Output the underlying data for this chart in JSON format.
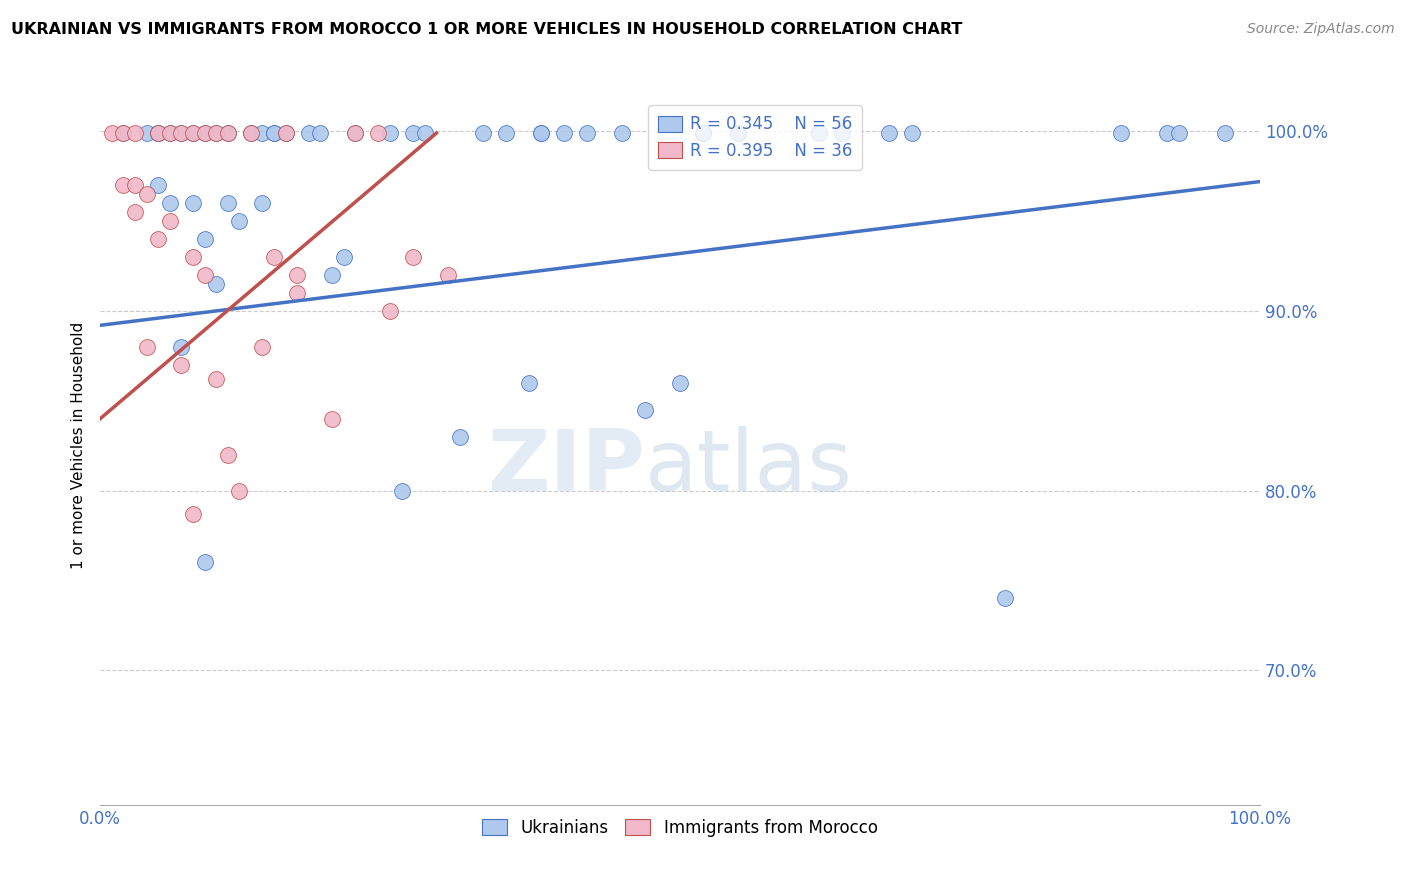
{
  "title": "UKRAINIAN VS IMMIGRANTS FROM MOROCCO 1 OR MORE VEHICLES IN HOUSEHOLD CORRELATION CHART",
  "source": "Source: ZipAtlas.com",
  "ylabel": "1 or more Vehicles in Household",
  "xlim": [
    0.0,
    1.0
  ],
  "ylim": [
    0.625,
    1.025
  ],
  "yticks": [
    0.7,
    0.8,
    0.9,
    1.0
  ],
  "ytick_labels": [
    "70.0%",
    "80.0%",
    "90.0%",
    "100.0%"
  ],
  "xtick_labels": [
    "0.0%",
    "100.0%"
  ],
  "legend_r_blue": "R = 0.345",
  "legend_n_blue": "N = 56",
  "legend_r_pink": "R = 0.395",
  "legend_n_pink": "N = 36",
  "blue_color": "#aec9ed",
  "pink_color": "#f0b8c8",
  "line_blue_color": "#4472c4",
  "line_pink_color": "#c0504d",
  "watermark_zip": "ZIP",
  "watermark_atlas": "atlas",
  "blue_points_x": [
    0.02,
    0.04,
    0.05,
    0.05,
    0.06,
    0.06,
    0.07,
    0.07,
    0.08,
    0.08,
    0.09,
    0.09,
    0.1,
    0.1,
    0.11,
    0.11,
    0.12,
    0.13,
    0.14,
    0.14,
    0.15,
    0.15,
    0.16,
    0.18,
    0.19,
    0.2,
    0.21,
    0.22,
    0.25,
    0.26,
    0.27,
    0.28,
    0.31,
    0.33,
    0.35,
    0.37,
    0.38,
    0.38,
    0.4,
    0.42,
    0.45,
    0.47,
    0.5,
    0.52,
    0.55,
    0.62,
    0.64,
    0.68,
    0.7,
    0.78,
    0.88,
    0.92,
    0.93,
    0.97,
    0.05,
    0.09
  ],
  "blue_points_y": [
    0.999,
    0.999,
    0.999,
    0.97,
    0.999,
    0.96,
    0.999,
    0.88,
    0.999,
    0.96,
    0.94,
    0.999,
    0.999,
    0.915,
    0.96,
    0.999,
    0.95,
    0.999,
    0.96,
    0.999,
    0.999,
    0.999,
    0.999,
    0.999,
    0.999,
    0.92,
    0.93,
    0.999,
    0.999,
    0.8,
    0.999,
    0.999,
    0.83,
    0.999,
    0.999,
    0.86,
    0.999,
    0.999,
    0.999,
    0.999,
    0.999,
    0.845,
    0.86,
    0.999,
    0.999,
    0.999,
    0.999,
    0.999,
    0.999,
    0.74,
    0.999,
    0.999,
    0.999,
    0.999,
    0.999,
    0.76
  ],
  "pink_points_x": [
    0.01,
    0.02,
    0.02,
    0.03,
    0.03,
    0.03,
    0.04,
    0.04,
    0.05,
    0.05,
    0.06,
    0.06,
    0.07,
    0.07,
    0.08,
    0.08,
    0.09,
    0.09,
    0.1,
    0.1,
    0.11,
    0.11,
    0.12,
    0.13,
    0.14,
    0.15,
    0.16,
    0.17,
    0.17,
    0.2,
    0.22,
    0.24,
    0.25,
    0.27,
    0.3,
    0.08
  ],
  "pink_points_y": [
    0.999,
    0.999,
    0.97,
    0.999,
    0.97,
    0.955,
    0.965,
    0.88,
    0.999,
    0.94,
    0.999,
    0.95,
    0.999,
    0.87,
    0.999,
    0.93,
    0.999,
    0.92,
    0.862,
    0.999,
    0.82,
    0.999,
    0.8,
    0.999,
    0.88,
    0.93,
    0.999,
    0.92,
    0.91,
    0.84,
    0.999,
    0.999,
    0.9,
    0.93,
    0.92,
    0.787
  ],
  "blue_line_x": [
    0.0,
    1.0
  ],
  "blue_line_y": [
    0.892,
    0.972
  ],
  "pink_line_x": [
    0.0,
    0.29
  ],
  "pink_line_y": [
    0.84,
    0.999
  ]
}
